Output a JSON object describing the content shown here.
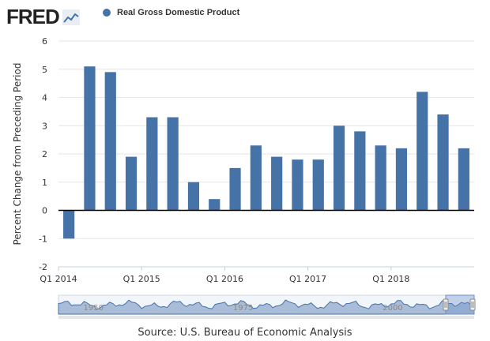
{
  "header": {
    "logo": "FRED",
    "logo_icon": "fred-chart-icon"
  },
  "chart_data": {
    "type": "bar",
    "title": "",
    "legend": [
      "Real Gross Domestic Product"
    ],
    "ylabel": "Percent Change from Preceding Period",
    "xlabel": "",
    "ylim": [
      -2,
      6
    ],
    "yticks": [
      "-2",
      "-1",
      "0",
      "1",
      "2",
      "3",
      "4",
      "5",
      "6"
    ],
    "xtick_labels": [
      {
        "label": "Q1 2014",
        "index": 0
      },
      {
        "label": "Q1 2015",
        "index": 4
      },
      {
        "label": "Q1 2016",
        "index": 8
      },
      {
        "label": "Q1 2017",
        "index": 12
      },
      {
        "label": "Q1 2018",
        "index": 16
      }
    ],
    "series": [
      {
        "name": "Real Gross Domestic Product",
        "color": "#4572a7",
        "values": [
          -1.0,
          5.1,
          4.9,
          1.9,
          3.3,
          3.3,
          1.0,
          0.4,
          1.5,
          2.3,
          1.9,
          1.8,
          1.8,
          3.0,
          2.8,
          2.3,
          2.2,
          4.2,
          3.4,
          2.2
        ]
      }
    ],
    "grid": true,
    "legend_position": "top-left"
  },
  "navigator": {
    "labels": [
      "1950",
      "1975",
      "2000"
    ]
  },
  "footer": {
    "source": "Source: U.S. Bureau of Economic Analysis"
  }
}
